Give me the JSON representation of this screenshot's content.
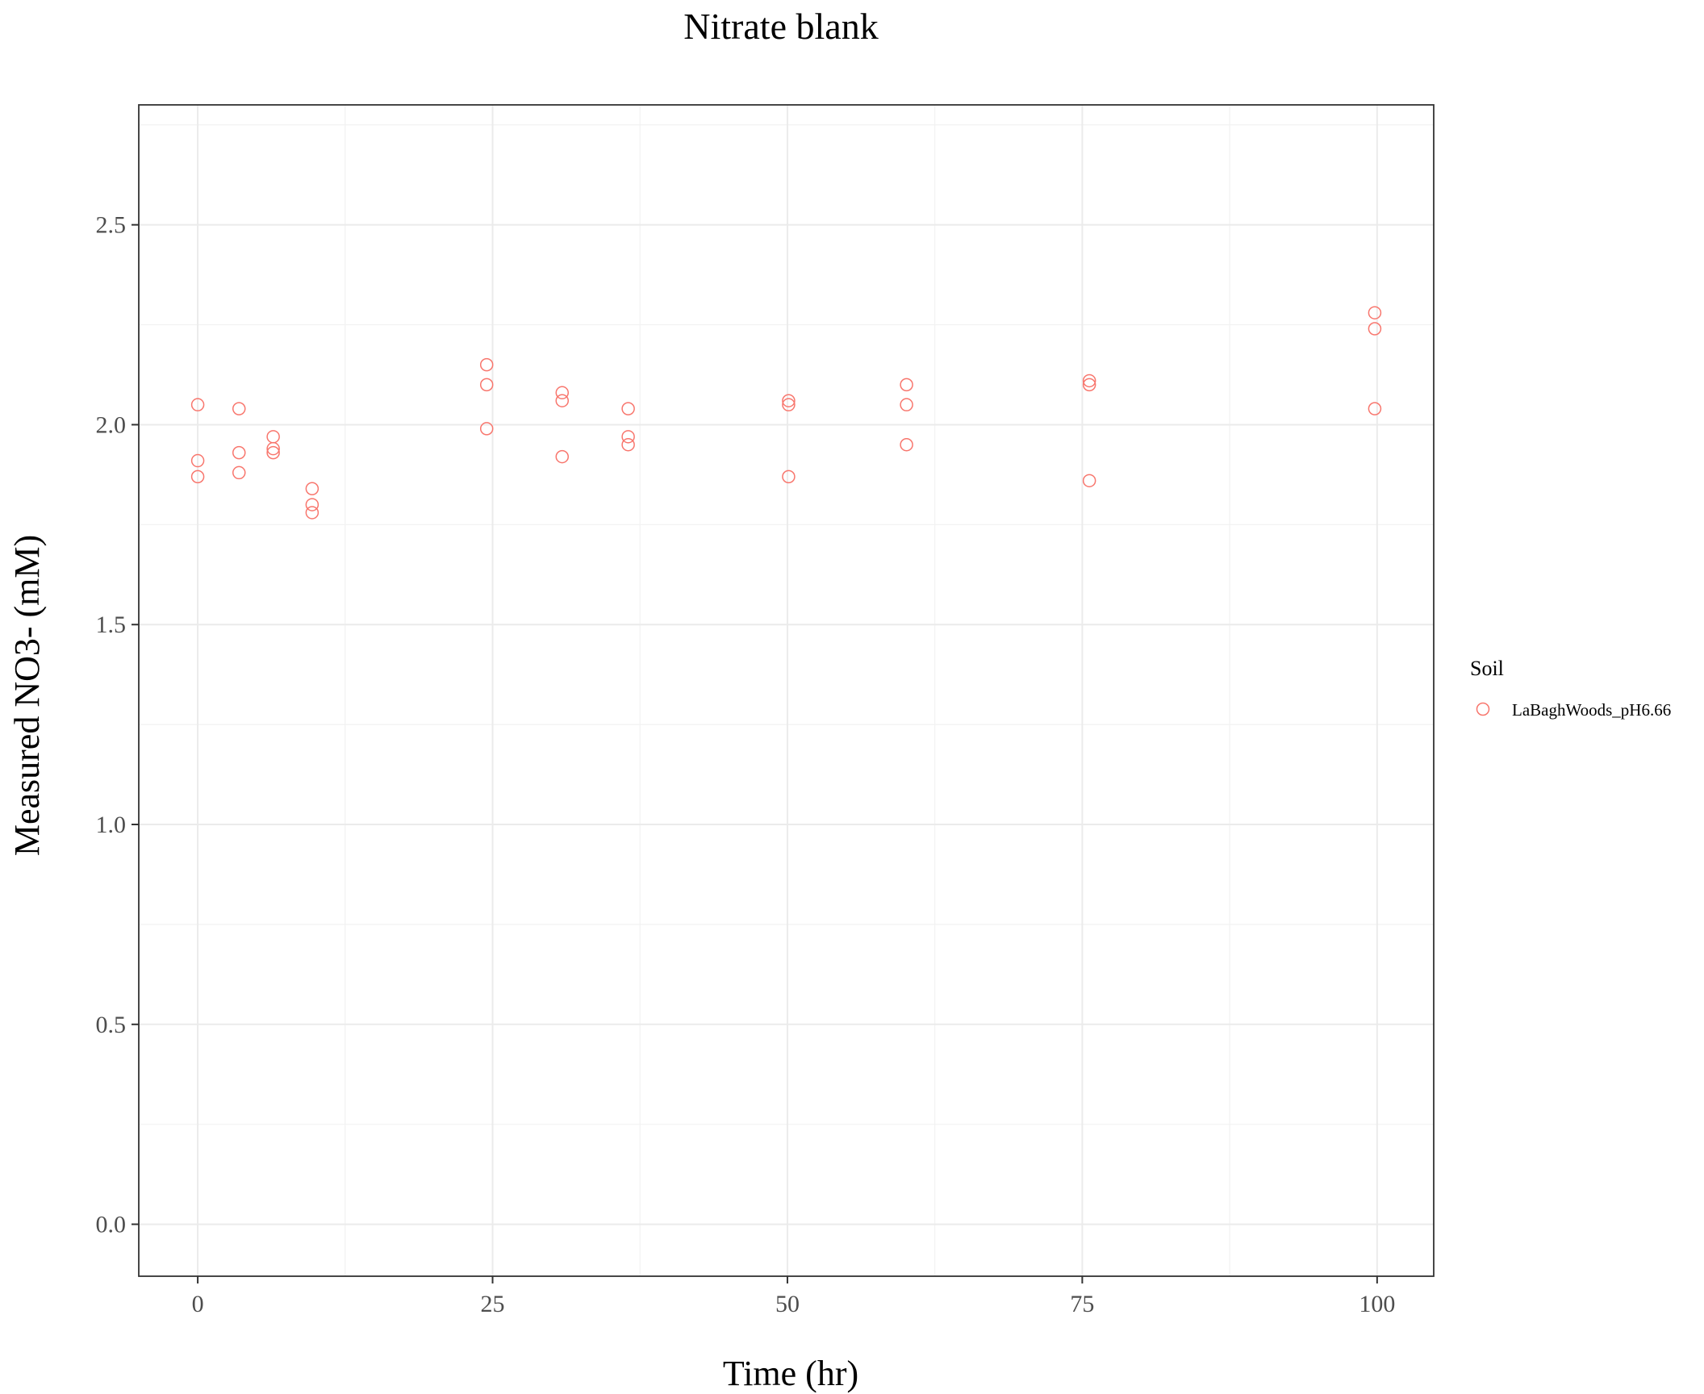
{
  "chart_data": {
    "type": "scatter",
    "title": "Nitrate blank",
    "xlabel": "Time (hr)",
    "ylabel": "Measured NO3- (mM)",
    "xlim": [
      -5,
      104.8
    ],
    "ylim": [
      -0.13,
      2.8
    ],
    "x_ticks": [
      0,
      25,
      50,
      75,
      100
    ],
    "y_ticks": [
      0.0,
      0.5,
      1.0,
      1.5,
      2.0,
      2.5
    ],
    "x_tick_labels": [
      "0",
      "25",
      "50",
      "75",
      "100"
    ],
    "y_tick_labels": [
      "0.0",
      "0.5",
      "1.0",
      "1.5",
      "2.0",
      "2.5"
    ],
    "grid": true,
    "legend": {
      "title": "Soil",
      "placement": "right",
      "entries": [
        "LaBaghWoods_pH6.66"
      ]
    },
    "series": [
      {
        "name": "LaBaghWoods_pH6.66",
        "color": "#f8766d",
        "marker": "open-circle",
        "points": [
          {
            "x": 0,
            "y": 2.05
          },
          {
            "x": 0,
            "y": 1.91
          },
          {
            "x": 0,
            "y": 1.87
          },
          {
            "x": 3.5,
            "y": 2.04
          },
          {
            "x": 3.5,
            "y": 1.93
          },
          {
            "x": 3.5,
            "y": 1.88
          },
          {
            "x": 6.4,
            "y": 1.97
          },
          {
            "x": 6.4,
            "y": 1.94
          },
          {
            "x": 6.4,
            "y": 1.93
          },
          {
            "x": 9.7,
            "y": 1.84
          },
          {
            "x": 9.7,
            "y": 1.8
          },
          {
            "x": 9.7,
            "y": 1.78
          },
          {
            "x": 24.5,
            "y": 2.15
          },
          {
            "x": 24.5,
            "y": 2.1
          },
          {
            "x": 24.5,
            "y": 1.99
          },
          {
            "x": 30.9,
            "y": 2.08
          },
          {
            "x": 30.9,
            "y": 2.06
          },
          {
            "x": 30.9,
            "y": 1.92
          },
          {
            "x": 36.5,
            "y": 2.04
          },
          {
            "x": 36.5,
            "y": 1.97
          },
          {
            "x": 36.5,
            "y": 1.95
          },
          {
            "x": 50.1,
            "y": 2.06
          },
          {
            "x": 50.1,
            "y": 2.05
          },
          {
            "x": 50.1,
            "y": 1.87
          },
          {
            "x": 60.1,
            "y": 2.1
          },
          {
            "x": 60.1,
            "y": 2.05
          },
          {
            "x": 60.1,
            "y": 1.95
          },
          {
            "x": 75.6,
            "y": 2.11
          },
          {
            "x": 75.6,
            "y": 2.1
          },
          {
            "x": 75.6,
            "y": 1.86
          },
          {
            "x": 99.8,
            "y": 2.28
          },
          {
            "x": 99.8,
            "y": 2.24
          },
          {
            "x": 99.8,
            "y": 2.04
          }
        ]
      }
    ]
  }
}
